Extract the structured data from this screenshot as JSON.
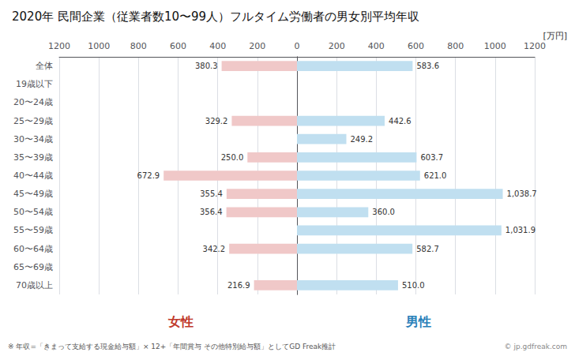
{
  "chart_data": {
    "type": "bar",
    "orientation": "horizontal",
    "title": "2020年 民間企業（従業者数10〜99人）フルタイム労働者の男女別平均年収",
    "categories": [
      "全体",
      "19歳以下",
      "20〜24歳",
      "25〜29歳",
      "30〜34歳",
      "35〜39歳",
      "40〜44歳",
      "45〜49歳",
      "50〜54歳",
      "55〜59歳",
      "60〜64歳",
      "65〜69歳",
      "70歳以上"
    ],
    "series": [
      {
        "name": "女性",
        "color": "#f0c8c8",
        "values": [
          380.3,
          0,
          0,
          329.2,
          0,
          250.0,
          672.9,
          355.4,
          356.4,
          0,
          342.2,
          0,
          216.9
        ],
        "value_labels": [
          "380.3",
          null,
          null,
          "329.2",
          null,
          "250.0",
          "672.9",
          "355.4",
          "356.4",
          null,
          "342.2",
          null,
          "216.9"
        ]
      },
      {
        "name": "男性",
        "color": "#c0dff0",
        "values": [
          583.6,
          0,
          0,
          442.6,
          249.2,
          603.7,
          621.0,
          1038.7,
          360.0,
          1031.9,
          582.7,
          0,
          510.0
        ],
        "value_labels": [
          "583.6",
          null,
          null,
          "442.6",
          "249.2",
          "603.7",
          "621.0",
          "1,038.7",
          "360.0",
          "1,031.9",
          "582.7",
          null,
          "510.0"
        ]
      }
    ],
    "xlim": [
      0,
      1200
    ],
    "xticks": [
      0,
      200,
      400,
      600,
      800,
      1000,
      1200
    ],
    "grid": true,
    "data_labels": true,
    "annotations": [
      {
        "text": "[万円]"
      },
      {
        "text": "女性",
        "color": "#c0392b"
      },
      {
        "text": "男性",
        "color": "#2980b9"
      },
      {
        "text": "※ 年収=「きまって支給する現金給与額」× 12+「年間賞与 その他特別給与額」としてGD Freak推計"
      },
      {
        "text": "© jp.gdfreak.com"
      }
    ]
  }
}
